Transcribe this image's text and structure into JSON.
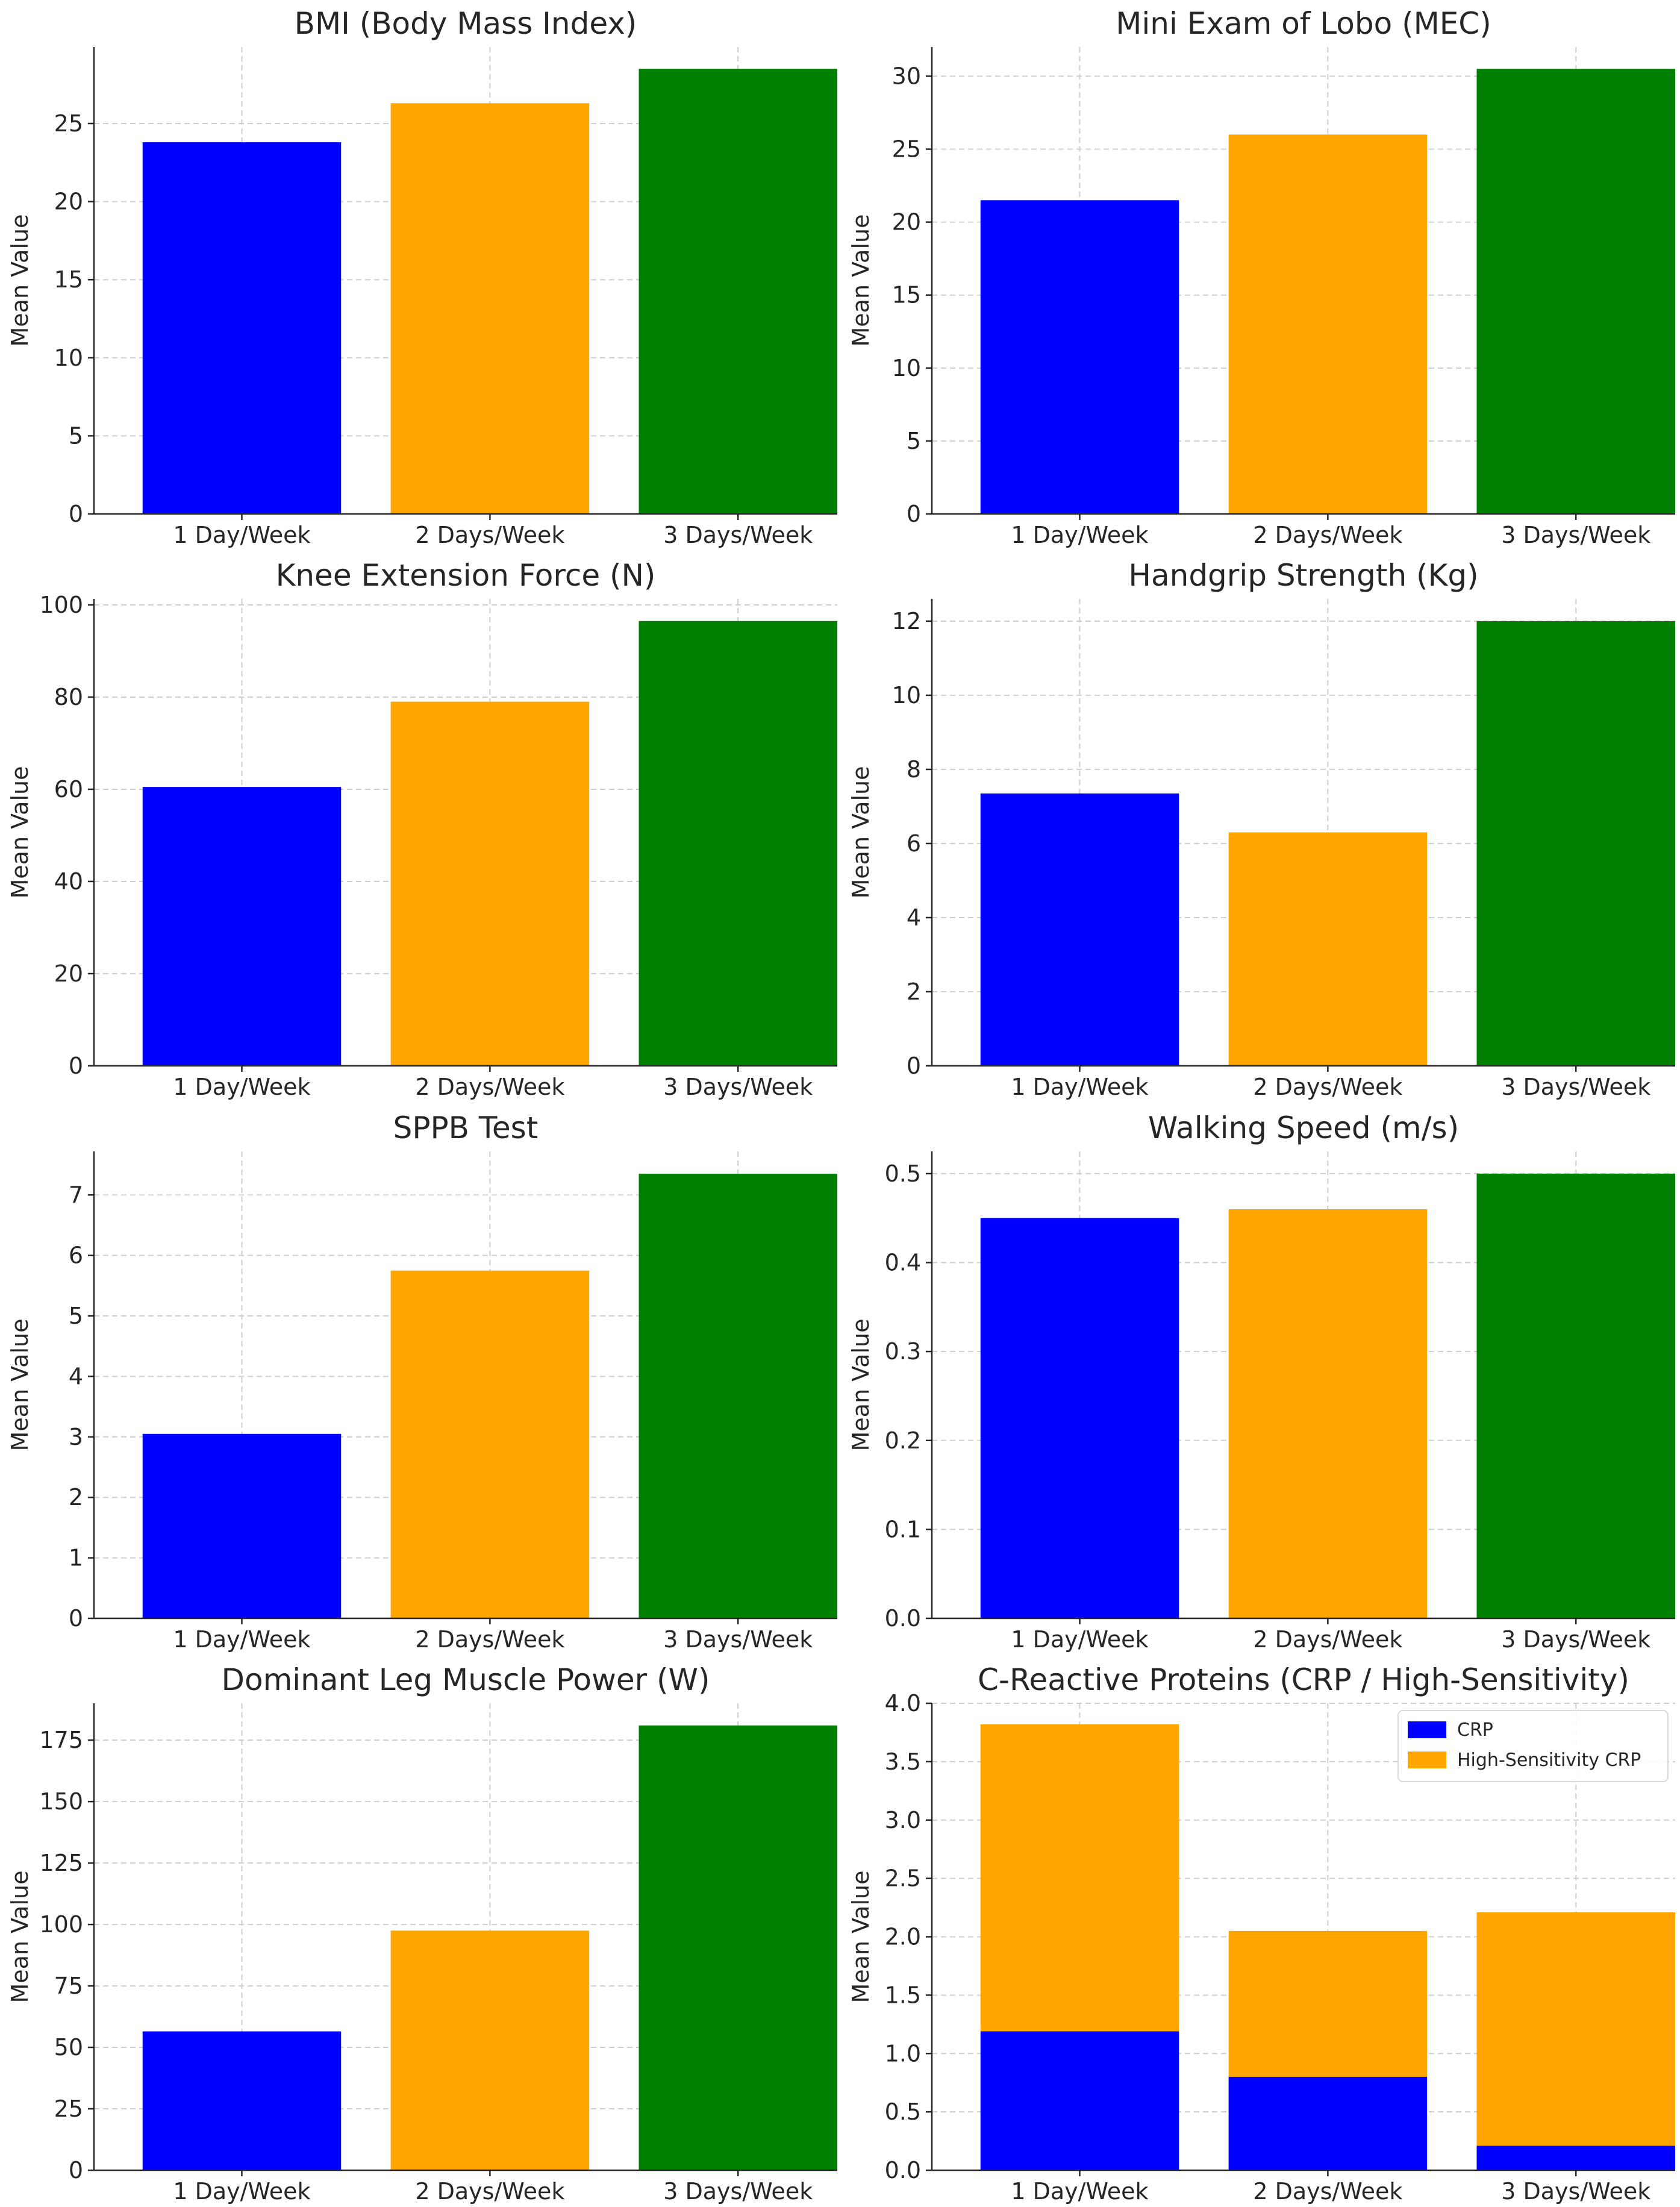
{
  "chart_data": [
    {
      "type": "bar",
      "title": "BMI (Body Mass Index)",
      "ylabel": "Mean Value",
      "xlabel": "",
      "categories": [
        "1 Day/Week",
        "2 Days/Week",
        "3 Days/Week"
      ],
      "values": [
        23.8,
        26.3,
        28.5
      ],
      "colors": [
        "#0000ff",
        "#ffa500",
        "#008000"
      ],
      "ylim": [
        0,
        29.9
      ],
      "yticks": [
        0,
        5,
        10,
        15,
        20,
        25
      ],
      "ytick_labels": [
        "0",
        "5",
        "10",
        "15",
        "20",
        "25"
      ],
      "grid": true
    },
    {
      "type": "bar",
      "title": "Mini Exam of Lobo (MEC)",
      "ylabel": "Mean Value",
      "xlabel": "",
      "categories": [
        "1 Day/Week",
        "2 Days/Week",
        "3 Days/Week"
      ],
      "values": [
        21.5,
        26.0,
        30.5
      ],
      "colors": [
        "#0000ff",
        "#ffa500",
        "#008000"
      ],
      "ylim": [
        0,
        32.0
      ],
      "yticks": [
        0,
        5,
        10,
        15,
        20,
        25,
        30
      ],
      "ytick_labels": [
        "0",
        "5",
        "10",
        "15",
        "20",
        "25",
        "30"
      ],
      "grid": true
    },
    {
      "type": "bar",
      "title": "Knee Extension Force (N)",
      "ylabel": "Mean Value",
      "xlabel": "",
      "categories": [
        "1 Day/Week",
        "2 Days/Week",
        "3 Days/Week"
      ],
      "values": [
        60.5,
        79.0,
        96.5
      ],
      "colors": [
        "#0000ff",
        "#ffa500",
        "#008000"
      ],
      "ylim": [
        0,
        101.3
      ],
      "yticks": [
        0,
        20,
        40,
        60,
        80,
        100
      ],
      "ytick_labels": [
        "0",
        "20",
        "40",
        "60",
        "80",
        "100"
      ],
      "grid": true
    },
    {
      "type": "bar",
      "title": "Handgrip Strength (Kg)",
      "ylabel": "Mean Value",
      "xlabel": "",
      "categories": [
        "1 Day/Week",
        "2 Days/Week",
        "3 Days/Week"
      ],
      "values": [
        7.35,
        6.3,
        12.0
      ],
      "colors": [
        "#0000ff",
        "#ffa500",
        "#008000"
      ],
      "ylim": [
        0,
        12.6
      ],
      "yticks": [
        0,
        2,
        4,
        6,
        8,
        10,
        12
      ],
      "ytick_labels": [
        "0",
        "2",
        "4",
        "6",
        "8",
        "10",
        "12"
      ],
      "grid": true
    },
    {
      "type": "bar",
      "title": "SPPB Test",
      "ylabel": "Mean Value",
      "xlabel": "",
      "categories": [
        "1 Day/Week",
        "2 Days/Week",
        "3 Days/Week"
      ],
      "values": [
        3.05,
        5.75,
        7.35
      ],
      "colors": [
        "#0000ff",
        "#ffa500",
        "#008000"
      ],
      "ylim": [
        0,
        7.72
      ],
      "yticks": [
        0,
        1,
        2,
        3,
        4,
        5,
        6,
        7
      ],
      "ytick_labels": [
        "0",
        "1",
        "2",
        "3",
        "4",
        "5",
        "6",
        "7"
      ],
      "grid": true
    },
    {
      "type": "bar",
      "title": "Walking Speed (m/s)",
      "ylabel": "Mean Value",
      "xlabel": "",
      "categories": [
        "1 Day/Week",
        "2 Days/Week",
        "3 Days/Week"
      ],
      "values": [
        0.45,
        0.46,
        0.5
      ],
      "colors": [
        "#0000ff",
        "#ffa500",
        "#008000"
      ],
      "ylim": [
        0,
        0.525
      ],
      "yticks": [
        0,
        0.1,
        0.2,
        0.3,
        0.4,
        0.5
      ],
      "ytick_labels": [
        "0.0",
        "0.1",
        "0.2",
        "0.3",
        "0.4",
        "0.5"
      ],
      "grid": true
    },
    {
      "type": "bar",
      "title": "Dominant Leg Muscle Power (W)",
      "ylabel": "Mean Value",
      "xlabel": "",
      "categories": [
        "1 Day/Week",
        "2 Days/Week",
        "3 Days/Week"
      ],
      "values": [
        56.5,
        97.5,
        181.0
      ],
      "colors": [
        "#0000ff",
        "#ffa500",
        "#008000"
      ],
      "ylim": [
        0,
        190.0
      ],
      "yticks": [
        0,
        25,
        50,
        75,
        100,
        125,
        150,
        175
      ],
      "ytick_labels": [
        "0",
        "25",
        "50",
        "75",
        "100",
        "125",
        "150",
        "175"
      ],
      "grid": true
    },
    {
      "type": "bar",
      "stacked": true,
      "title": "C-Reactive Proteins (CRP / High-Sensitivity)",
      "ylabel": "Mean Value",
      "xlabel": "",
      "categories": [
        "1 Day/Week",
        "2 Days/Week",
        "3 Days/Week"
      ],
      "series": [
        {
          "name": "CRP",
          "color": "#0000ff",
          "values": [
            1.19,
            0.8,
            0.21
          ]
        },
        {
          "name": "High-Sensitivity CRP",
          "color": "#ffa500",
          "values": [
            2.63,
            1.25,
            2.0
          ]
        }
      ],
      "ylim": [
        0,
        4.0
      ],
      "yticks": [
        0,
        0.5,
        1.0,
        1.5,
        2.0,
        2.5,
        3.0,
        3.5,
        4.0
      ],
      "ytick_labels": [
        "0.0",
        "0.5",
        "1.0",
        "1.5",
        "2.0",
        "2.5",
        "3.0",
        "3.5",
        "4.0"
      ],
      "legend": "top-right",
      "grid": true
    }
  ]
}
